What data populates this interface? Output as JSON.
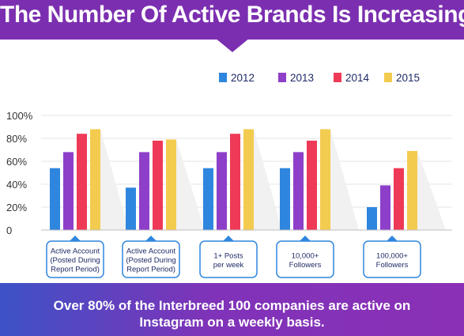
{
  "header": {
    "title": "The Number Of Active Brands Is Increasing",
    "color": "#7b2fb0"
  },
  "footer": {
    "text": "Over 80% of the Interbreed 100 companies are active on Instagram on a weekly basis."
  },
  "chart_data": {
    "type": "bar",
    "categories": [
      [
        "Active Account",
        "(Posted During",
        "Report Period)"
      ],
      [
        "Active Account",
        "(Posted During",
        "Report Period)"
      ],
      [
        "1+ Posts",
        "per week"
      ],
      [
        "10,000+",
        "Followers"
      ],
      [
        "100,000+",
        "Followers"
      ]
    ],
    "series": [
      {
        "name": "2012",
        "color": "#2e86de",
        "values": [
          54,
          37,
          54,
          54,
          20
        ]
      },
      {
        "name": "2013",
        "color": "#8e3fc9",
        "values": [
          68,
          68,
          68,
          68,
          39
        ]
      },
      {
        "name": "2014",
        "color": "#ee3a57",
        "values": [
          84,
          78,
          84,
          78,
          54
        ]
      },
      {
        "name": "2015",
        "color": "#f3cb4f",
        "values": [
          88,
          79,
          88,
          88,
          69
        ]
      }
    ],
    "ylim": [
      0,
      100
    ],
    "yticks": [
      "0",
      "20%",
      "40%",
      "60%",
      "80%",
      "100%"
    ],
    "ytick_values": [
      0,
      20,
      40,
      60,
      80,
      100
    ],
    "grid": true,
    "legend_position": "top-right"
  }
}
